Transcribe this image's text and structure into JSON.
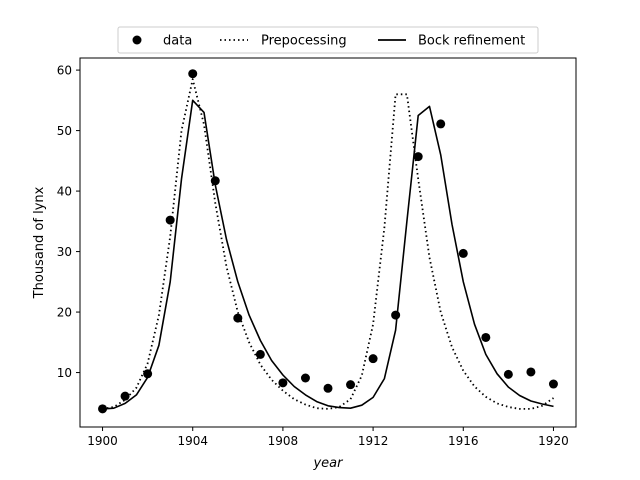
{
  "chart_data": {
    "type": "line",
    "title": "",
    "xlabel": "year",
    "ylabel": "Thousand of lynx",
    "xlim": [
      1899.0,
      1921.0
    ],
    "ylim": [
      1.0,
      62.0
    ],
    "xticks": [
      1900,
      1904,
      1908,
      1912,
      1916,
      1920
    ],
    "yticks": [
      10,
      20,
      30,
      40,
      50,
      60
    ],
    "legend": {
      "position": "top-center",
      "ncol": 3
    },
    "grid": false,
    "series": [
      {
        "name": "data",
        "kind": "scatter",
        "color": "#000000",
        "x": [
          1900,
          1901,
          1902,
          1903,
          1904,
          1905,
          1906,
          1907,
          1908,
          1909,
          1910,
          1911,
          1912,
          1913,
          1914,
          1915,
          1916,
          1917,
          1918,
          1919,
          1920
        ],
        "y": [
          4.0,
          6.1,
          9.8,
          35.2,
          59.4,
          41.7,
          19.0,
          13.0,
          8.3,
          9.1,
          7.4,
          8.0,
          12.3,
          19.5,
          45.7,
          51.1,
          29.7,
          15.8,
          9.7,
          10.1,
          8.1
        ]
      },
      {
        "name": "Prepocessing",
        "kind": "line",
        "style": "dotted",
        "color": "#000000",
        "x": [
          1900,
          1900.5,
          1901,
          1901.5,
          1902,
          1902.5,
          1903,
          1903.5,
          1904,
          1904.5,
          1905,
          1905.5,
          1906,
          1906.5,
          1907,
          1907.5,
          1908,
          1908.5,
          1909,
          1909.5,
          1910,
          1910.5,
          1911,
          1911.5,
          1912,
          1912.5,
          1913,
          1913.5,
          1914,
          1914.5,
          1915,
          1915.5,
          1916,
          1916.5,
          1917,
          1917.5,
          1918,
          1918.5,
          1919,
          1919.5,
          1920
        ],
        "y": [
          4.0,
          4.3,
          5.5,
          7.5,
          11.5,
          19.5,
          32.5,
          50.0,
          58.5,
          51.0,
          38.0,
          27.5,
          20.0,
          15.0,
          11.3,
          8.8,
          7.0,
          5.6,
          4.7,
          4.1,
          4.0,
          4.3,
          5.6,
          9.5,
          18.0,
          34.0,
          56.0,
          56.0,
          42.0,
          29.0,
          20.0,
          14.2,
          10.3,
          7.7,
          6.0,
          4.9,
          4.3,
          4.0,
          4.0,
          4.5,
          5.8
        ]
      },
      {
        "name": "Bock refinement",
        "kind": "line",
        "style": "solid",
        "color": "#000000",
        "x": [
          1900,
          1900.5,
          1901,
          1901.5,
          1902,
          1902.5,
          1903,
          1903.5,
          1904,
          1904.5,
          1905,
          1905.5,
          1906,
          1906.5,
          1907,
          1907.5,
          1908,
          1908.5,
          1909,
          1909.5,
          1910,
          1910.5,
          1911,
          1911.5,
          1912,
          1912.5,
          1913,
          1913.5,
          1914,
          1914.5,
          1915,
          1915.5,
          1916,
          1916.5,
          1917,
          1917.5,
          1918,
          1918.5,
          1919,
          1919.5,
          1920
        ],
        "y": [
          4.0,
          4.1,
          4.9,
          6.3,
          9.2,
          14.5,
          25.0,
          42.0,
          55.0,
          53.0,
          41.0,
          32.0,
          25.0,
          19.5,
          15.3,
          12.0,
          9.6,
          7.7,
          6.3,
          5.2,
          4.5,
          4.2,
          4.1,
          4.6,
          5.9,
          9.0,
          17.0,
          35.0,
          52.5,
          54.0,
          46.0,
          34.5,
          25.0,
          18.0,
          13.0,
          9.8,
          7.6,
          6.2,
          5.3,
          4.8,
          4.4
        ]
      }
    ]
  }
}
